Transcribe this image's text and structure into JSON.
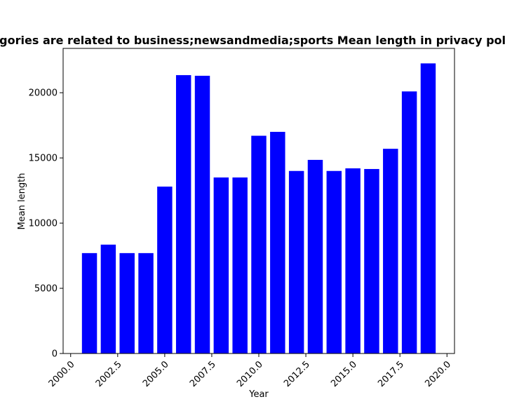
{
  "chart_data": {
    "type": "bar",
    "title": "Categories are related to business;newsandmedia;sports Mean length in privacy policies",
    "xlabel": "Year",
    "ylabel": "Mean length",
    "x": [
      2001,
      2002,
      2003,
      2004,
      2005,
      2006,
      2007,
      2008,
      2009,
      2010,
      2011,
      2012,
      2013,
      2014,
      2015,
      2016,
      2017,
      2018,
      2019
    ],
    "values": [
      7700,
      8350,
      7700,
      7700,
      12800,
      21350,
      21300,
      13500,
      13500,
      16700,
      17000,
      14000,
      14850,
      14000,
      14200,
      14150,
      15700,
      20100,
      22250
    ],
    "xlim": [
      1999.6,
      2020.4
    ],
    "ylim": [
      0,
      23400
    ],
    "xticks": [
      "2000.0",
      "2002.5",
      "2005.0",
      "2007.5",
      "2010.0",
      "2012.5",
      "2015.0",
      "2017.5",
      "2020.0"
    ],
    "yticks": [
      "0",
      "5000",
      "10000",
      "15000",
      "20000"
    ],
    "bar_color": "#0000ff",
    "grid": false,
    "legend": "none"
  }
}
